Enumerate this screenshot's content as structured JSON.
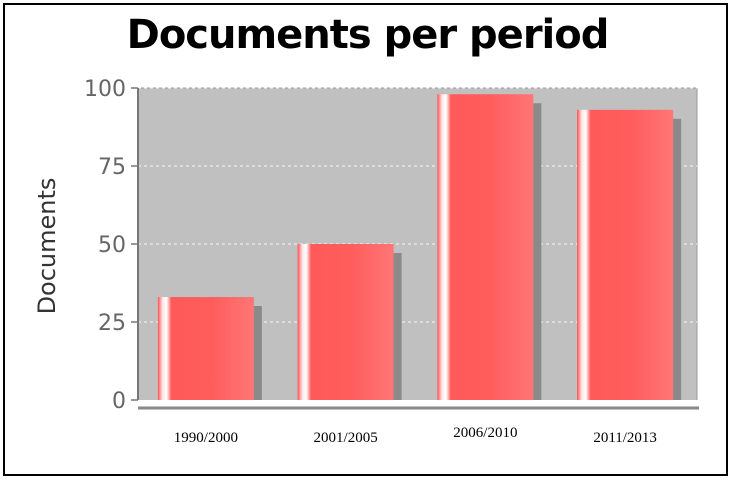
{
  "chart_data": {
    "type": "bar",
    "title": "Documents per period",
    "xlabel": "",
    "ylabel": "Documents",
    "categories": [
      "1990/2000",
      "2001/2005",
      "2006/2010",
      "2011/2013"
    ],
    "values": [
      33,
      50,
      98,
      93
    ],
    "ylim": [
      0,
      100
    ],
    "yticks": [
      0,
      25,
      50,
      75,
      100
    ],
    "grid": true,
    "colors": {
      "bar": "#ff6666",
      "bar_highlight": "#ffffff",
      "bar_shadow": "#8a8a8a",
      "plot_background": "#c0c0c0",
      "gridline": "#ffffff"
    }
  }
}
